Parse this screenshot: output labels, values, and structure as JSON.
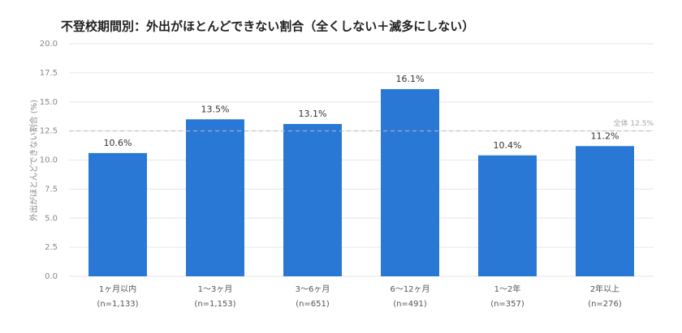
{
  "chart_data": {
    "type": "bar",
    "title": "不登校期間別：外出がほとんどできない割合（全くしない＋滅多にしない）",
    "y_label": "外出がほとんどできない割合 (%)",
    "categories": [
      "1ヶ月以内",
      "1～3ヶ月",
      "3～6ヶ月",
      "6～12ヶ月",
      "1～2年",
      "2年以上"
    ],
    "category_sublabels": [
      "(n=1,133)",
      "(n=1,153)",
      "(n=651)",
      "(n=491)",
      "(n=357)",
      "(n=276)"
    ],
    "values": [
      10.6,
      13.5,
      13.1,
      16.1,
      10.4,
      11.2
    ],
    "value_labels": [
      "10.6%",
      "13.5%",
      "13.1%",
      "16.1%",
      "10.4%",
      "11.2%"
    ],
    "color": "#2a78d6",
    "ylim": [
      0,
      20
    ],
    "yticks": [
      {
        "value": 0,
        "label": "0.0"
      },
      {
        "value": 2.5,
        "label": "2.5"
      },
      {
        "value": 5,
        "label": "5.0"
      },
      {
        "value": 7.5,
        "label": "7.5"
      },
      {
        "value": 10,
        "label": "10.0"
      },
      {
        "value": 12.5,
        "label": "12.5"
      },
      {
        "value": 15,
        "label": "15.0"
      },
      {
        "value": 17.5,
        "label": "17.5"
      },
      {
        "value": 20,
        "label": "20.0"
      }
    ],
    "grid": true,
    "reference_line": {
      "value": 12.5,
      "label": "全体 12.5%"
    }
  }
}
